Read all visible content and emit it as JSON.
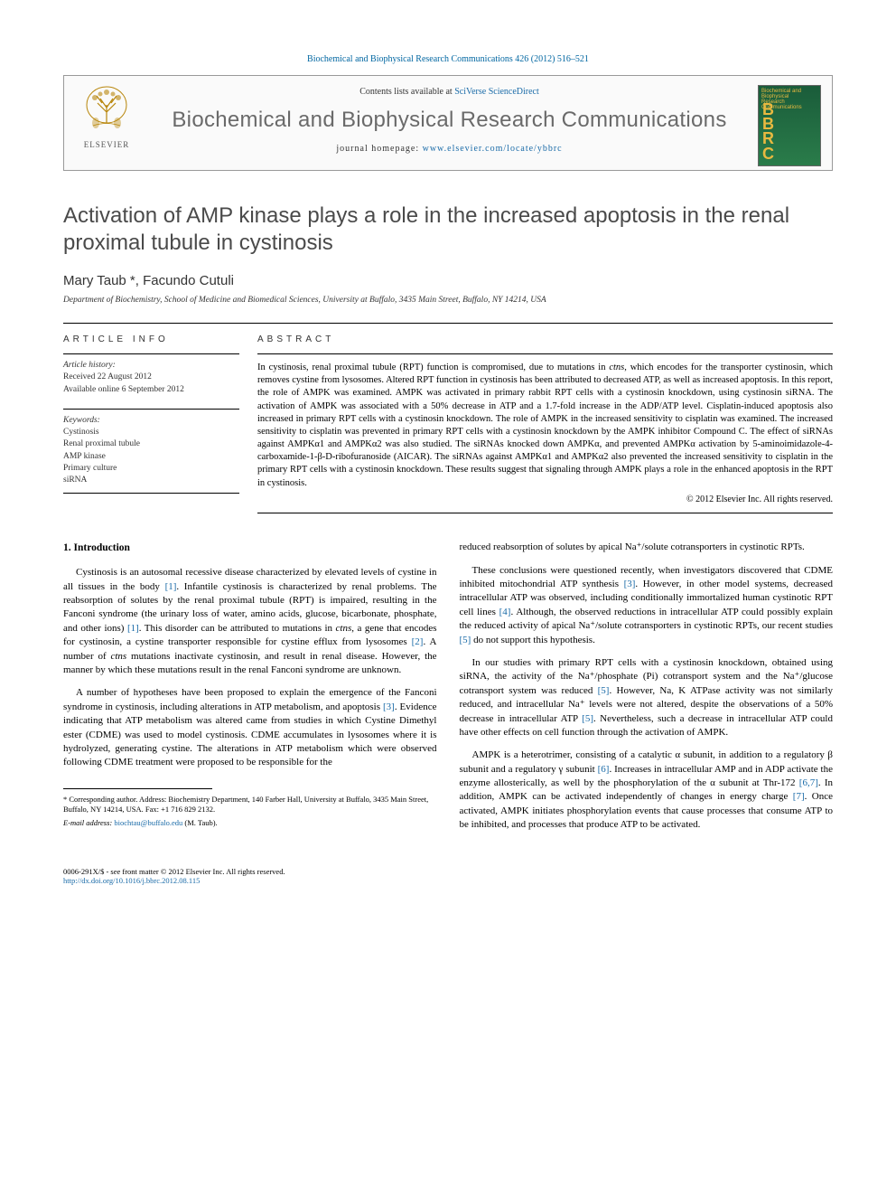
{
  "citation": "Biochemical and Biophysical Research Communications 426 (2012) 516–521",
  "header": {
    "contents_prefix": "Contents lists available at ",
    "contents_link": "SciVerse ScienceDirect",
    "journal_name": "Biochemical and Biophysical Research Communications",
    "homepage_prefix": "journal homepage: ",
    "homepage_link": "www.elsevier.com/locate/ybbrc",
    "publisher": "ELSEVIER",
    "cover_abbr": "B\nB\nR\nC",
    "cover_small": "Biochemical and\nBiophysical\nResearch\nCommunications"
  },
  "title": "Activation of AMP kinase plays a role in the increased apoptosis in the renal proximal tubule in cystinosis",
  "authors": "Mary Taub *, Facundo Cutuli",
  "affiliation": "Department of Biochemistry, School of Medicine and Biomedical Sciences, University at Buffalo, 3435 Main Street, Buffalo, NY 14214, USA",
  "article_info": {
    "heading": "ARTICLE INFO",
    "history_label": "Article history:",
    "received": "Received 22 August 2012",
    "online": "Available online 6 September 2012",
    "keywords_label": "Keywords:",
    "keywords": [
      "Cystinosis",
      "Renal proximal tubule",
      "AMP kinase",
      "Primary culture",
      "siRNA"
    ]
  },
  "abstract": {
    "heading": "ABSTRACT",
    "text": "In cystinosis, renal proximal tubule (RPT) function is compromised, due to mutations in ctns, which encodes for the transporter cystinosin, which removes cystine from lysosomes. Altered RPT function in cystinosis has been attributed to decreased ATP, as well as increased apoptosis. In this report, the role of AMPK was examined. AMPK was activated in primary rabbit RPT cells with a cystinosin knockdown, using cystinosin siRNA. The activation of AMPK was associated with a 50% decrease in ATP and a 1.7-fold increase in the ADP/ATP level. Cisplatin-induced apoptosis also increased in primary RPT cells with a cystinosin knockdown. The role of AMPK in the increased sensitivity to cisplatin was examined. The increased sensitivity to cisplatin was prevented in primary RPT cells with a cystinosin knockdown by the AMPK inhibitor Compound C. The effect of siRNAs against AMPKα1 and AMPKα2 was also studied. The siRNAs knocked down AMPKα, and prevented AMPKα activation by 5-aminoimidazole-4-carboxamide-1-β-D-ribofuranoside (AICAR). The siRNAs against AMPKα1 and AMPKα2 also prevented the increased sensitivity to cisplatin in the primary RPT cells with a cystinosin knockdown. These results suggest that signaling through AMPK plays a role in the enhanced apoptosis in the RPT in cystinosis.",
    "copyright": "© 2012 Elsevier Inc. All rights reserved."
  },
  "body": {
    "intro_heading": "1. Introduction",
    "p1": "Cystinosis is an autosomal recessive disease characterized by elevated levels of cystine in all tissues in the body [1]. Infantile cystinosis is characterized by renal problems. The reabsorption of solutes by the renal proximal tubule (RPT) is impaired, resulting in the Fanconi syndrome (the urinary loss of water, amino acids, glucose, bicarbonate, phosphate, and other ions) [1]. This disorder can be attributed to mutations in ctns, a gene that encodes for cystinosin, a cystine transporter responsible for cystine efflux from lysosomes [2]. A number of ctns mutations inactivate cystinosin, and result in renal disease. However, the manner by which these mutations result in the renal Fanconi syndrome are unknown.",
    "p2": "A number of hypotheses have been proposed to explain the emergence of the Fanconi syndrome in cystinosis, including alterations in ATP metabolism, and apoptosis [3]. Evidence indicating that ATP metabolism was altered came from studies in which Cystine Dimethyl ester (CDME) was used to model cystinosis. CDME accumulates in lysosomes where it is hydrolyzed, generating cystine. The alterations in ATP metabolism which were observed following CDME treatment were proposed to be responsible for the",
    "p3": "reduced reabsorption of solutes by apical Na⁺/solute cotransporters in cystinotic RPTs.",
    "p4": "These conclusions were questioned recently, when investigators discovered that CDME inhibited mitochondrial ATP synthesis [3]. However, in other model systems, decreased intracellular ATP was observed, including conditionally immortalized human cystinotic RPT cell lines [4]. Although, the observed reductions in intracellular ATP could possibly explain the reduced activity of apical Na⁺/solute cotransporters in cystinotic RPTs, our recent studies [5] do not support this hypothesis.",
    "p5": "In our studies with primary RPT cells with a cystinosin knockdown, obtained using siRNA, the activity of the Na⁺/phosphate (Pi) cotransport system and the Na⁺/glucose cotransport system was reduced [5]. However, Na, K ATPase activity was not similarly reduced, and intracellular Na⁺ levels were not altered, despite the observations of a 50% decrease in intracellular ATP [5]. Nevertheless, such a decrease in intracellular ATP could have other effects on cell function through the activation of AMPK.",
    "p6": "AMPK is a heterotrimer, consisting of a catalytic α subunit, in addition to a regulatory β subunit and a regulatory γ subunit [6]. Increases in intracellular AMP and in ADP activate the enzyme allosterically, as well by the phosphorylation of the α subunit at Thr-172 [6,7]. In addition, AMPK can be activated independently of changes in energy charge [7]. Once activated, AMPK initiates phosphorylation events that cause processes that consume ATP to be inhibited, and processes that produce ATP to be activated."
  },
  "footnote": {
    "corresponding": "* Corresponding author. Address: Biochemistry Department, 140 Farber Hall, University at Buffalo, 3435 Main Street, Buffalo, NY 14214, USA. Fax: +1 716 829 2132.",
    "email_label": "E-mail address:",
    "email": "biochtau@buffalo.edu",
    "email_suffix": "(M. Taub)."
  },
  "bottom": {
    "issn": "0006-291X/$ - see front matter © 2012 Elsevier Inc. All rights reserved.",
    "doi": "http://dx.doi.org/10.1016/j.bbrc.2012.08.115"
  },
  "colors": {
    "link": "#1a6ba8",
    "title_gray": "#4a4a4a",
    "journal_gray": "#6a6a6a",
    "cover_green": "#1a5c3a",
    "cover_gold": "#e8b940"
  }
}
